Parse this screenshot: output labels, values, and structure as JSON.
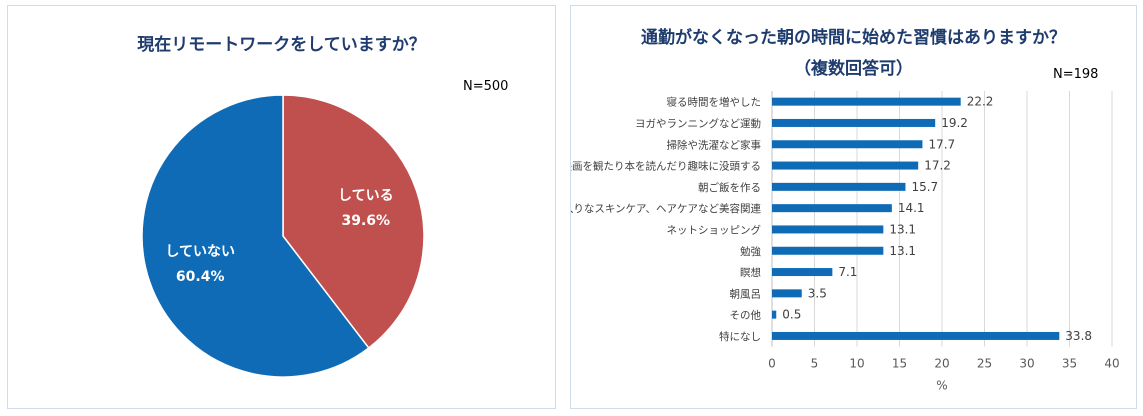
{
  "pie_panel": {
    "title": "現在リモートワークをしていますか？",
    "n_label": "N=500"
  },
  "bar_panel": {
    "title_line1": "通勤がなくなった朝の時間に始めた習慣はありますか？",
    "title_line2": "（複数回答可）",
    "n_label": "N=198"
  },
  "chart_data": [
    {
      "type": "pie",
      "title": "現在リモートワークをしていますか？",
      "slices": [
        {
          "label": "している",
          "value": 39.6,
          "value_label": "39.6%",
          "color": "#c0504d"
        },
        {
          "label": "していない",
          "value": 60.4,
          "value_label": "60.4%",
          "color": "#0f6bb5"
        }
      ]
    },
    {
      "type": "bar",
      "orientation": "horizontal",
      "title": "通勤がなくなった朝の時間に始めた習慣はありますか？（複数回答可）",
      "xlabel": "%",
      "xlim": [
        0,
        40
      ],
      "xticks": [
        0,
        5,
        10,
        15,
        20,
        25,
        30,
        35,
        40
      ],
      "grid": true,
      "color": "#0f6bb5",
      "categories": [
        "寝る時間を増やした",
        "ヨガやランニングなど運動",
        "掃除や洗濯など家事",
        "映画を観たり本を読んだり趣味に没頭する",
        "朝ご飯を作る",
        "念入りなスキンケア、ヘアケアなど美容関連",
        "ネットショッピング",
        "勉強",
        "瞑想",
        "朝風呂",
        "その他",
        "特になし"
      ],
      "values": [
        22.2,
        19.2,
        17.7,
        17.2,
        15.7,
        14.1,
        13.1,
        13.1,
        7.1,
        3.5,
        0.5,
        33.8
      ]
    }
  ]
}
